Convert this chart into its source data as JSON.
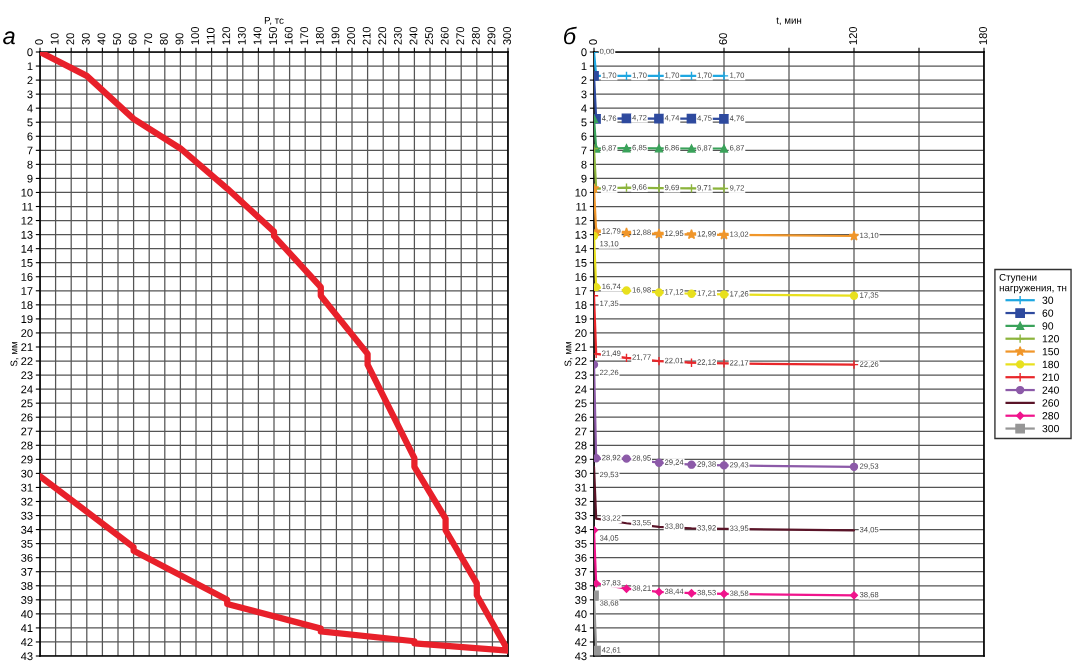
{
  "chart_data": [
    {
      "type": "line",
      "title": "а",
      "xlabel": "P, тс",
      "ylabel": "S, мм",
      "grid": true,
      "xlim": [
        0,
        300
      ],
      "xticks": [
        0,
        10,
        20,
        30,
        40,
        50,
        60,
        70,
        80,
        90,
        100,
        110,
        120,
        130,
        140,
        150,
        160,
        170,
        180,
        190,
        200,
        210,
        220,
        230,
        240,
        250,
        260,
        270,
        280,
        290,
        300
      ],
      "ylim": [
        43,
        0
      ],
      "yticks": [
        0,
        1,
        2,
        3,
        4,
        5,
        6,
        7,
        8,
        9,
        10,
        11,
        12,
        13,
        14,
        15,
        16,
        17,
        18,
        19,
        20,
        21,
        22,
        23,
        24,
        25,
        26,
        27,
        28,
        29,
        30,
        31,
        32,
        33,
        34,
        35,
        36,
        37,
        38,
        39,
        40,
        41,
        42,
        43
      ],
      "series": [
        {
          "color": "#e8202a",
          "x": [
            0,
            30,
            60,
            90,
            120,
            150,
            150,
            180,
            180,
            210,
            210,
            240,
            240,
            260,
            260,
            280,
            280,
            300,
            240,
            240,
            180,
            180,
            120,
            120,
            60,
            60,
            0
          ],
          "values": [
            0,
            1.7,
            4.76,
            6.87,
            9.72,
            12.79,
            13.1,
            16.74,
            17.35,
            21.49,
            22.26,
            28.92,
            29.53,
            33.22,
            34.05,
            37.83,
            38.68,
            42.61,
            42.1,
            41.95,
            41.25,
            41.05,
            39.3,
            39.0,
            35.5,
            35.25,
            30.2
          ]
        }
      ]
    },
    {
      "type": "line",
      "title": "б",
      "xlabel": "t, мин",
      "ylabel": "S, мм",
      "grid": true,
      "legend": "right",
      "legend_title": "Ступени нагружения, тн",
      "xlim": [
        0,
        180
      ],
      "xticks": [
        0,
        {
          "value": 30,
          "label": null
        },
        60,
        {
          "value": 90,
          "label": null
        },
        120,
        {
          "value": 150,
          "label": null
        },
        180
      ],
      "ylim": [
        43,
        0
      ],
      "yticks": [
        0,
        1,
        2,
        3,
        4,
        5,
        6,
        7,
        8,
        9,
        10,
        11,
        12,
        13,
        14,
        15,
        16,
        17,
        18,
        19,
        20,
        21,
        22,
        23,
        24,
        25,
        26,
        27,
        28,
        29,
        30,
        31,
        32,
        33,
        34,
        35,
        36,
        37,
        38,
        39,
        40,
        41,
        42,
        43
      ],
      "series": [
        {
          "name": "30",
          "color": "#1ea7e1",
          "marker": "cross",
          "x": [
            0,
            1,
            15,
            30,
            45,
            60
          ],
          "values": [
            0,
            1.7,
            1.7,
            1.7,
            1.7,
            1.7
          ],
          "value_labels": [
            "0,00",
            "1,70",
            "1,70",
            "1,70",
            "1,70",
            "1,70"
          ]
        },
        {
          "name": "60",
          "color": "#2e4a9e",
          "marker": "square",
          "x": [
            0,
            1,
            15,
            30,
            45,
            60
          ],
          "values": [
            1.7,
            4.76,
            4.72,
            4.74,
            4.75,
            4.76
          ],
          "value_labels": [
            null,
            "4,76",
            "4,72",
            "4,74",
            "4,75",
            "4,76"
          ]
        },
        {
          "name": "90",
          "color": "#3aa25a",
          "marker": "triangle",
          "x": [
            0,
            1,
            15,
            30,
            45,
            60
          ],
          "values": [
            4.76,
            6.87,
            6.85,
            6.86,
            6.87,
            6.87
          ],
          "value_labels": [
            null,
            "6,87",
            "6,85",
            "6,86",
            "6,87",
            "6,87"
          ]
        },
        {
          "name": "120",
          "color": "#8cb43c",
          "marker": "cross",
          "x": [
            0,
            1,
            15,
            30,
            45,
            60
          ],
          "values": [
            6.87,
            9.72,
            9.66,
            9.69,
            9.71,
            9.72
          ],
          "value_labels": [
            null,
            "9,72",
            "9,66",
            "9,69",
            "9,71",
            "9,72"
          ]
        },
        {
          "name": "150",
          "color": "#f0962a",
          "marker": "star",
          "x": [
            0,
            1,
            15,
            30,
            45,
            60,
            120
          ],
          "values": [
            9.72,
            12.79,
            12.88,
            12.95,
            12.99,
            13.02,
            13.1
          ],
          "value_labels": [
            null,
            "12,79",
            "12,88",
            "12,95",
            "12,99",
            "13,02",
            "13,10"
          ]
        },
        {
          "name": "180",
          "color": "#e8e01e",
          "marker": "circle",
          "x": [
            0,
            1,
            15,
            30,
            45,
            60,
            120
          ],
          "values": [
            13.1,
            16.74,
            16.98,
            17.12,
            17.21,
            17.26,
            17.35
          ],
          "value_labels": [
            "13,10",
            "16,74",
            "16,98",
            "17,12",
            "17,21",
            "17,26",
            "17,35"
          ]
        },
        {
          "name": "210",
          "color": "#e8262a",
          "marker": "cross",
          "x": [
            0,
            1,
            15,
            30,
            45,
            60,
            120
          ],
          "values": [
            17.35,
            21.49,
            21.77,
            22.01,
            22.12,
            22.17,
            22.26
          ],
          "value_labels": [
            "17,35",
            "21,49",
            "21,77",
            "22,01",
            "22,12",
            "22,17",
            "22,26"
          ]
        },
        {
          "name": "240",
          "color": "#8c5aa8",
          "marker": "circle",
          "x": [
            0,
            1,
            15,
            30,
            45,
            60,
            120
          ],
          "values": [
            22.26,
            28.92,
            28.95,
            29.24,
            29.38,
            29.43,
            29.53
          ],
          "value_labels": [
            "22,26",
            "28,92",
            "28,95",
            "29,24",
            "29,38",
            "29,43",
            "29,53"
          ]
        },
        {
          "name": "260",
          "color": "#5a1428",
          "marker": "none",
          "x": [
            0,
            1,
            15,
            30,
            45,
            60,
            120
          ],
          "values": [
            29.53,
            33.22,
            33.55,
            33.8,
            33.92,
            33.95,
            34.05
          ],
          "value_labels": [
            "29,53",
            "33,22",
            "33,55",
            "33,80",
            "33,92",
            "33,95",
            "34,05"
          ]
        },
        {
          "name": "280",
          "color": "#f0148c",
          "marker": "diamond",
          "x": [
            0,
            1,
            15,
            30,
            45,
            60,
            120
          ],
          "values": [
            34.05,
            37.83,
            38.21,
            38.44,
            38.53,
            38.58,
            38.68
          ],
          "value_labels": [
            "34,05",
            "37,83",
            "38,21",
            "38,44",
            "38,53",
            "38,58",
            "38,68"
          ]
        },
        {
          "name": "300",
          "color": "#969696",
          "marker": "square",
          "x": [
            0,
            1
          ],
          "values": [
            38.68,
            42.61
          ],
          "value_labels": [
            "38,68",
            "42,61"
          ]
        }
      ]
    }
  ]
}
